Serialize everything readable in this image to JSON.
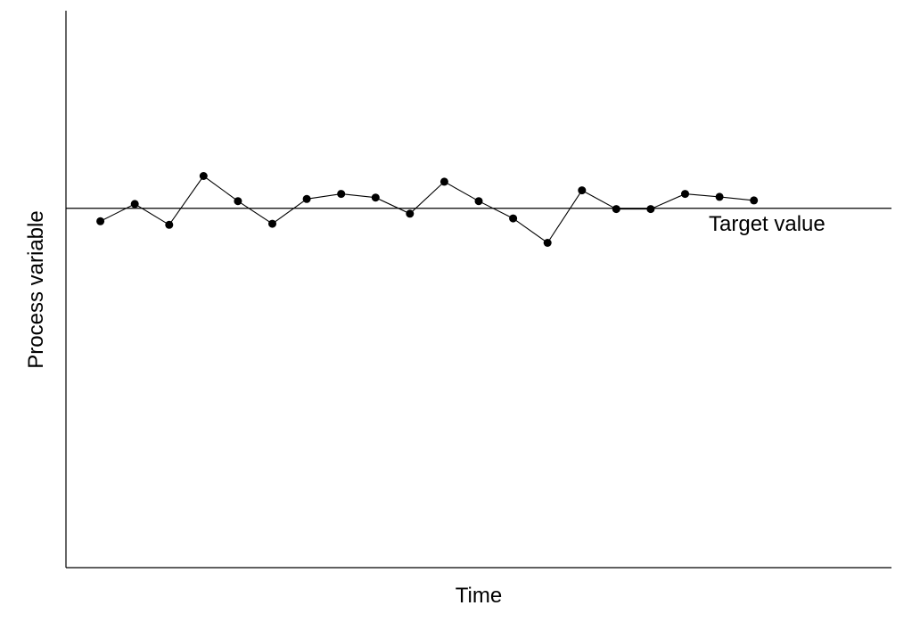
{
  "chart_data": {
    "type": "line",
    "title": "",
    "xlabel": "Time",
    "ylabel": "Process variable",
    "target_label": "Target value",
    "target_value": 0,
    "ylim": [
      -10,
      5.5
    ],
    "xlim": [
      0,
      24
    ],
    "grid": false,
    "x": [
      1,
      2,
      3,
      4,
      5,
      6,
      7,
      8,
      9,
      10,
      11,
      12,
      13,
      14,
      15,
      16,
      17,
      18,
      19,
      20
    ],
    "series": [
      {
        "values": [
          -0.36,
          0.12,
          -0.46,
          0.9,
          0.2,
          -0.43,
          0.26,
          0.4,
          0.3,
          -0.15,
          0.74,
          0.2,
          -0.28,
          -0.96,
          0.5,
          -0.02,
          -0.02,
          0.4,
          0.32,
          0.22
        ],
        "marker": "filled-circle",
        "color": "#000000"
      }
    ]
  }
}
